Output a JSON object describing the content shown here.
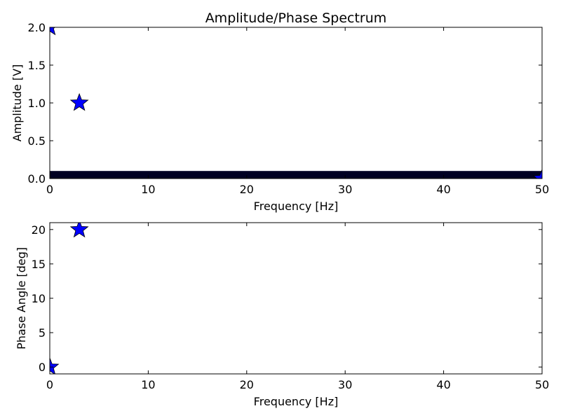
{
  "chart_data": [
    {
      "type": "scatter",
      "title": "Amplitude/Phase Spectrum",
      "xlabel": "Frequency [Hz]",
      "ylabel": "Amplitude [V]",
      "xlim": [
        0,
        50
      ],
      "ylim": [
        0,
        2
      ],
      "xticks": [
        "0",
        "10",
        "20",
        "30",
        "40",
        "50"
      ],
      "yticks": [
        "0.0",
        "0.5",
        "1.0",
        "1.5",
        "2.0"
      ],
      "grid": false,
      "marker": "star",
      "marker_color": "#0000ff",
      "baseline_color": "#000022",
      "baseline_band": {
        "from_hz": 0,
        "to_hz": 50,
        "max_amplitude": 0.1
      },
      "points": [
        {
          "x": 0,
          "y": 2.0
        },
        {
          "x": 3,
          "y": 1.0
        },
        {
          "x": 50,
          "y": 0.0
        }
      ]
    },
    {
      "type": "scatter",
      "title": "",
      "xlabel": "Frequency [Hz]",
      "ylabel": "Phase Angle [deg]",
      "xlim": [
        0,
        50
      ],
      "ylim": [
        -1,
        21
      ],
      "xticks": [
        "0",
        "10",
        "20",
        "30",
        "40",
        "50"
      ],
      "yticks": [
        "0",
        "5",
        "10",
        "15",
        "20"
      ],
      "grid": false,
      "marker": "star",
      "marker_color": "#0000ff",
      "points": [
        {
          "x": 0,
          "y": 0
        },
        {
          "x": 3,
          "y": 20
        }
      ]
    }
  ]
}
